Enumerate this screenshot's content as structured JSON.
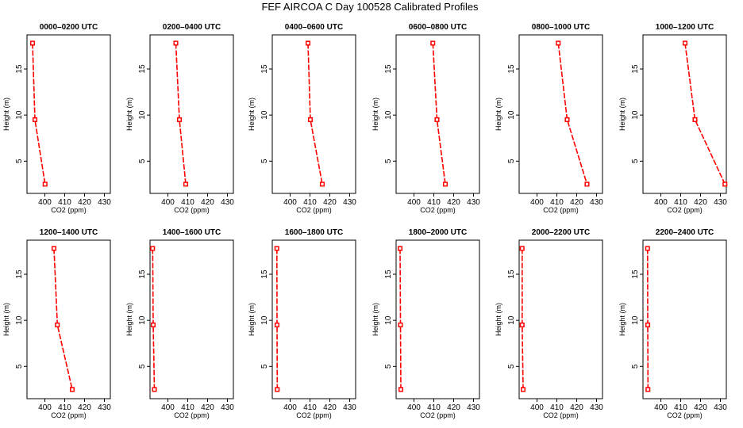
{
  "title": "FEF AIRCOA C  Day 100528  Calibrated Profiles",
  "chart_data": {
    "type": "line",
    "title": "FEF AIRCOA C  Day 100528  Calibrated Profiles",
    "xlabel": "CO2 (ppm)",
    "ylabel": "Height (m)",
    "xlim": [
      391,
      433
    ],
    "ylim": [
      1.5,
      18.7
    ],
    "x_ticks": [
      400,
      410,
      420,
      430
    ],
    "y_ticks": [
      5,
      10,
      15
    ],
    "grid": false,
    "heights": [
      17.8,
      9.5,
      2.5
    ],
    "panels": [
      {
        "title": "0000–0200 UTC",
        "co2": [
          393.8,
          395.0,
          400.1
        ]
      },
      {
        "title": "0200–0400 UTC",
        "co2": [
          404.0,
          405.8,
          409.0
        ]
      },
      {
        "title": "0400–0600 UTC",
        "co2": [
          409.0,
          410.2,
          416.2
        ]
      },
      {
        "title": "0600–0800 UTC",
        "co2": [
          409.5,
          411.6,
          415.8
        ]
      },
      {
        "title": "0800–1000 UTC",
        "co2": [
          410.7,
          415.2,
          425.2
        ]
      },
      {
        "title": "1000–1200 UTC",
        "co2": [
          412.2,
          417.2,
          432.3
        ]
      },
      {
        "title": "1200–1400 UTC",
        "co2": [
          404.6,
          406.3,
          413.8
        ]
      },
      {
        "title": "1400–1600 UTC",
        "co2": [
          392.3,
          392.6,
          393.2
        ]
      },
      {
        "title": "1600–1800 UTC",
        "co2": [
          393.3,
          393.4,
          393.5
        ]
      },
      {
        "title": "1800–2000 UTC",
        "co2": [
          393.0,
          393.2,
          393.4
        ]
      },
      {
        "title": "2000–2200 UTC",
        "co2": [
          392.5,
          392.5,
          393.0
        ]
      },
      {
        "title": "2200–2400 UTC",
        "co2": [
          393.3,
          393.4,
          393.5
        ]
      }
    ]
  }
}
